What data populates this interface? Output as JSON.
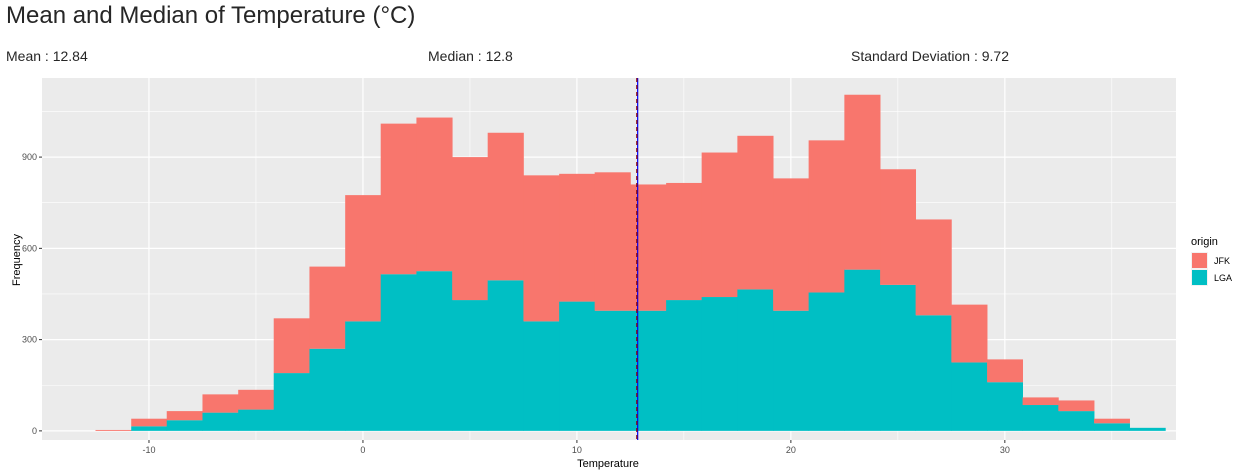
{
  "title": "Mean and Median of Temperature (°C)",
  "stats": {
    "mean": "Mean : 12.84",
    "median": "Median : 12.8",
    "sd": "Standard Deviation : 9.72"
  },
  "colors": {
    "panel": "#EBEBEB",
    "grid": "#FFFFFF",
    "jfk": "#F8766D",
    "lga": "#00BFC4",
    "mean_line": "#0000FF",
    "median_line": "#8B0000"
  },
  "chart_data": {
    "type": "bar",
    "title": "Mean and Median of Temperature (°C)",
    "xlabel": "Temperature",
    "ylabel": "Frequency",
    "xlim": [
      -15,
      38
    ],
    "ylim": [
      -30,
      1160
    ],
    "x_ticks": [
      -10,
      0,
      10,
      20,
      30
    ],
    "y_ticks": [
      0,
      300,
      600,
      900
    ],
    "grid": true,
    "stacked": true,
    "bin_edges": [
      -12.5,
      -10.83,
      -9.17,
      -7.5,
      -5.83,
      -4.17,
      -2.5,
      -0.83,
      0.83,
      2.5,
      4.17,
      5.83,
      7.5,
      9.17,
      10.83,
      12.5,
      14.17,
      15.83,
      17.5,
      19.17,
      20.83,
      22.5,
      24.17,
      25.83,
      27.5,
      29.17,
      30.83,
      32.5,
      34.17,
      35.83,
      37.5
    ],
    "series": [
      {
        "name": "LGA",
        "values": [
          0,
          15,
          35,
          60,
          70,
          190,
          270,
          360,
          515,
          525,
          430,
          495,
          360,
          425,
          395,
          395,
          430,
          440,
          465,
          395,
          455,
          530,
          480,
          380,
          225,
          160,
          85,
          65,
          25,
          10
        ]
      },
      {
        "name": "JFK",
        "values": [
          3,
          25,
          30,
          60,
          65,
          180,
          270,
          415,
          495,
          505,
          470,
          485,
          480,
          420,
          455,
          415,
          385,
          475,
          505,
          435,
          500,
          575,
          380,
          315,
          190,
          75,
          25,
          35,
          15,
          0
        ]
      }
    ],
    "legend": {
      "title": "origin",
      "entries": [
        "JFK",
        "LGA"
      ],
      "position": "right"
    },
    "reference_lines": [
      {
        "name": "mean",
        "value": 12.84,
        "style": "solid"
      },
      {
        "name": "median",
        "value": 12.8,
        "style": "dashed"
      }
    ]
  }
}
